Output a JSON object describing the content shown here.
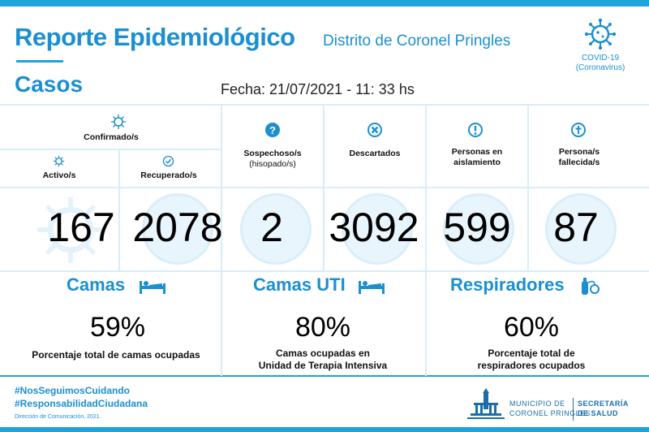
{
  "header": {
    "title": "Reporte Epidemiológico",
    "district": "Distrito de Coronel Pringles",
    "section": "Casos",
    "date": "Fecha: 21/07/2021 - 11: 33 hs",
    "covid_label_1": "COVID-19",
    "covid_label_2": "(Coronavirus)"
  },
  "cases": {
    "confirmed_label": "Confirmado/s",
    "active": {
      "label": "Activo/s",
      "value": "167"
    },
    "recovered": {
      "label": "Recuperado/s",
      "value": "2078"
    },
    "suspected": {
      "label_1": "Sospechoso/s",
      "label_2": "(hisopado/s)",
      "value": "2"
    },
    "discarded": {
      "label": "Descartados",
      "value": "3092"
    },
    "isolation": {
      "label_1": "Personas en",
      "label_2": "aislamiento",
      "value": "599"
    },
    "deceased": {
      "label_1": "Persona/s",
      "label_2": "fallecida/s",
      "value": "87"
    }
  },
  "occupancy": {
    "beds": {
      "title": "Camas",
      "value": "59%",
      "desc_1": "Porcentaje total de camas ocupadas"
    },
    "icu": {
      "title": "Camas UTI",
      "value": "80%",
      "desc_1": "Camas ocupadas en",
      "desc_2": "Unidad de Terapia Intensiva"
    },
    "ventilators": {
      "title": "Respiradores",
      "value": "60%",
      "desc_1": "Porcentaje total de",
      "desc_2": "respiradores ocupados"
    }
  },
  "footer": {
    "hashtag_1": "#NosSeguimosCuidando",
    "hashtag_2": "#ResponsabilidadCiudadana",
    "credit": "Dirección de Comunicación, 2021.",
    "muni_1": "MUNICIPIO DE",
    "muni_2": "CORONEL PRINGLES",
    "dept_1": "SECRETARÍA",
    "dept_2": "DE SALUD"
  },
  "colors": {
    "accent": "#1b8fd1",
    "bar": "#1ea3dd",
    "divider": "#d8edf8",
    "circle": "#e9f5fc"
  },
  "icons": [
    "virus-icon",
    "check-icon",
    "question-icon",
    "x-icon",
    "alert-icon",
    "cross-icon",
    "bed-icon",
    "oxygen-icon",
    "building-icon"
  ]
}
